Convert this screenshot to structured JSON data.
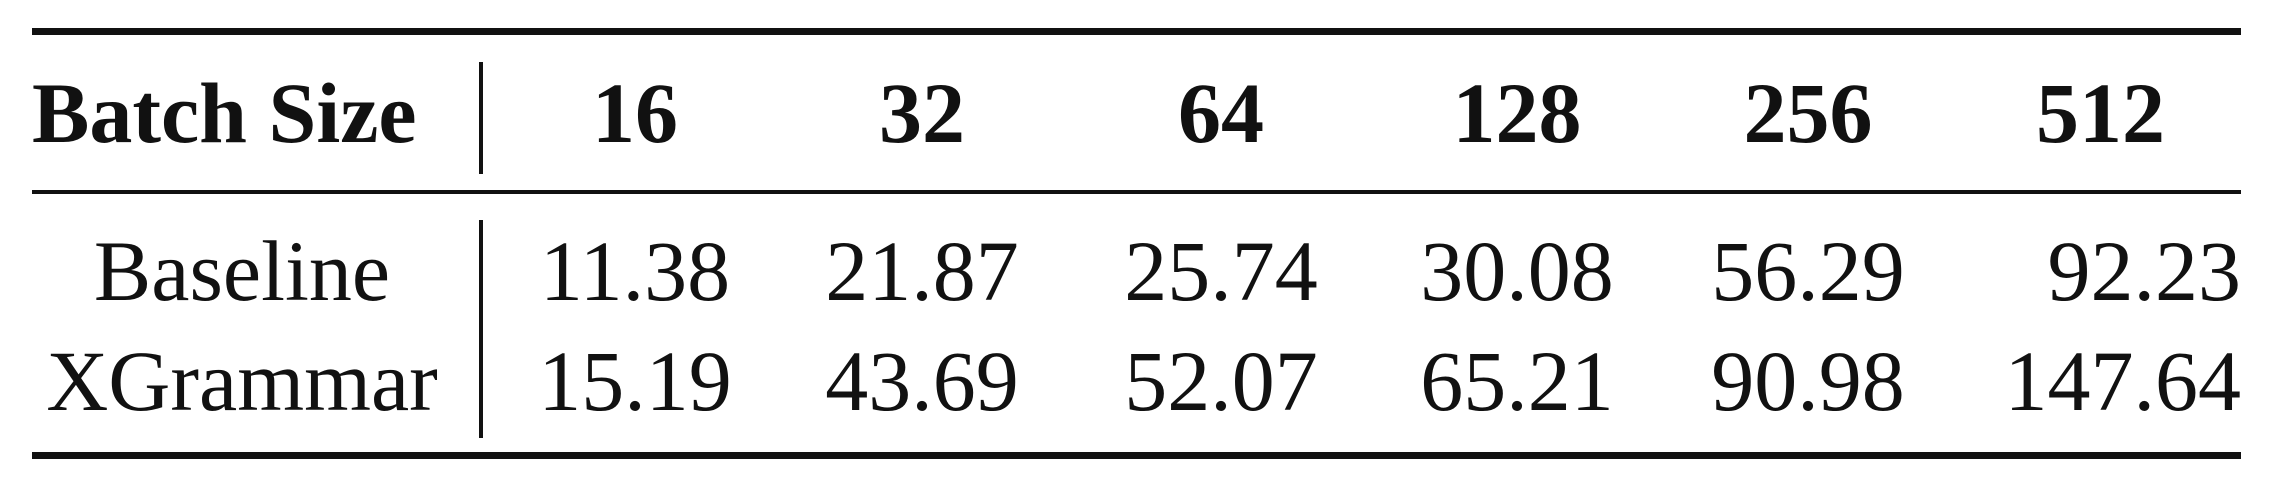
{
  "table": {
    "header": {
      "label": "Batch Size",
      "columns": [
        "16",
        "32",
        "64",
        "128",
        "256",
        "512"
      ]
    },
    "rows": [
      {
        "label": "Baseline",
        "values": [
          "11.38",
          "21.87",
          "25.74",
          "30.08",
          "56.29",
          "92.23"
        ]
      },
      {
        "label": "XGrammar",
        "values": [
          "15.19",
          "43.69",
          "52.07",
          "65.21",
          "90.98",
          "147.64"
        ]
      }
    ]
  }
}
